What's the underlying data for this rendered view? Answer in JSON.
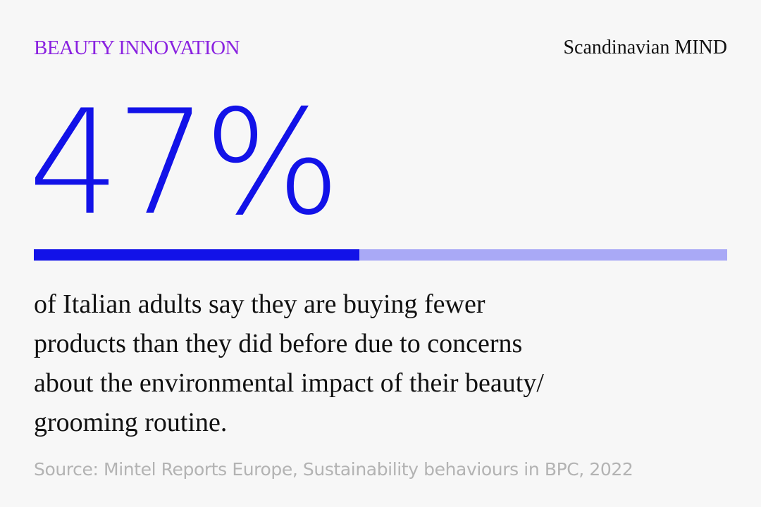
{
  "header": {
    "category": "BEAUTY INNOVATION",
    "brand": "Scandinavian MIND"
  },
  "stat": {
    "value": 47,
    "label": "47%",
    "scale": [
      0,
      100
    ],
    "color": "#1212e8",
    "track_color": "#a9a9f6"
  },
  "description": [
    "of Italian adults say they are buying fewer",
    "products than they did before due to concerns",
    "about the environmental impact of their beauty/",
    "grooming routine."
  ],
  "source": "Source: Mintel Reports Europe, Sustainability behaviours in BPC, 2022"
}
